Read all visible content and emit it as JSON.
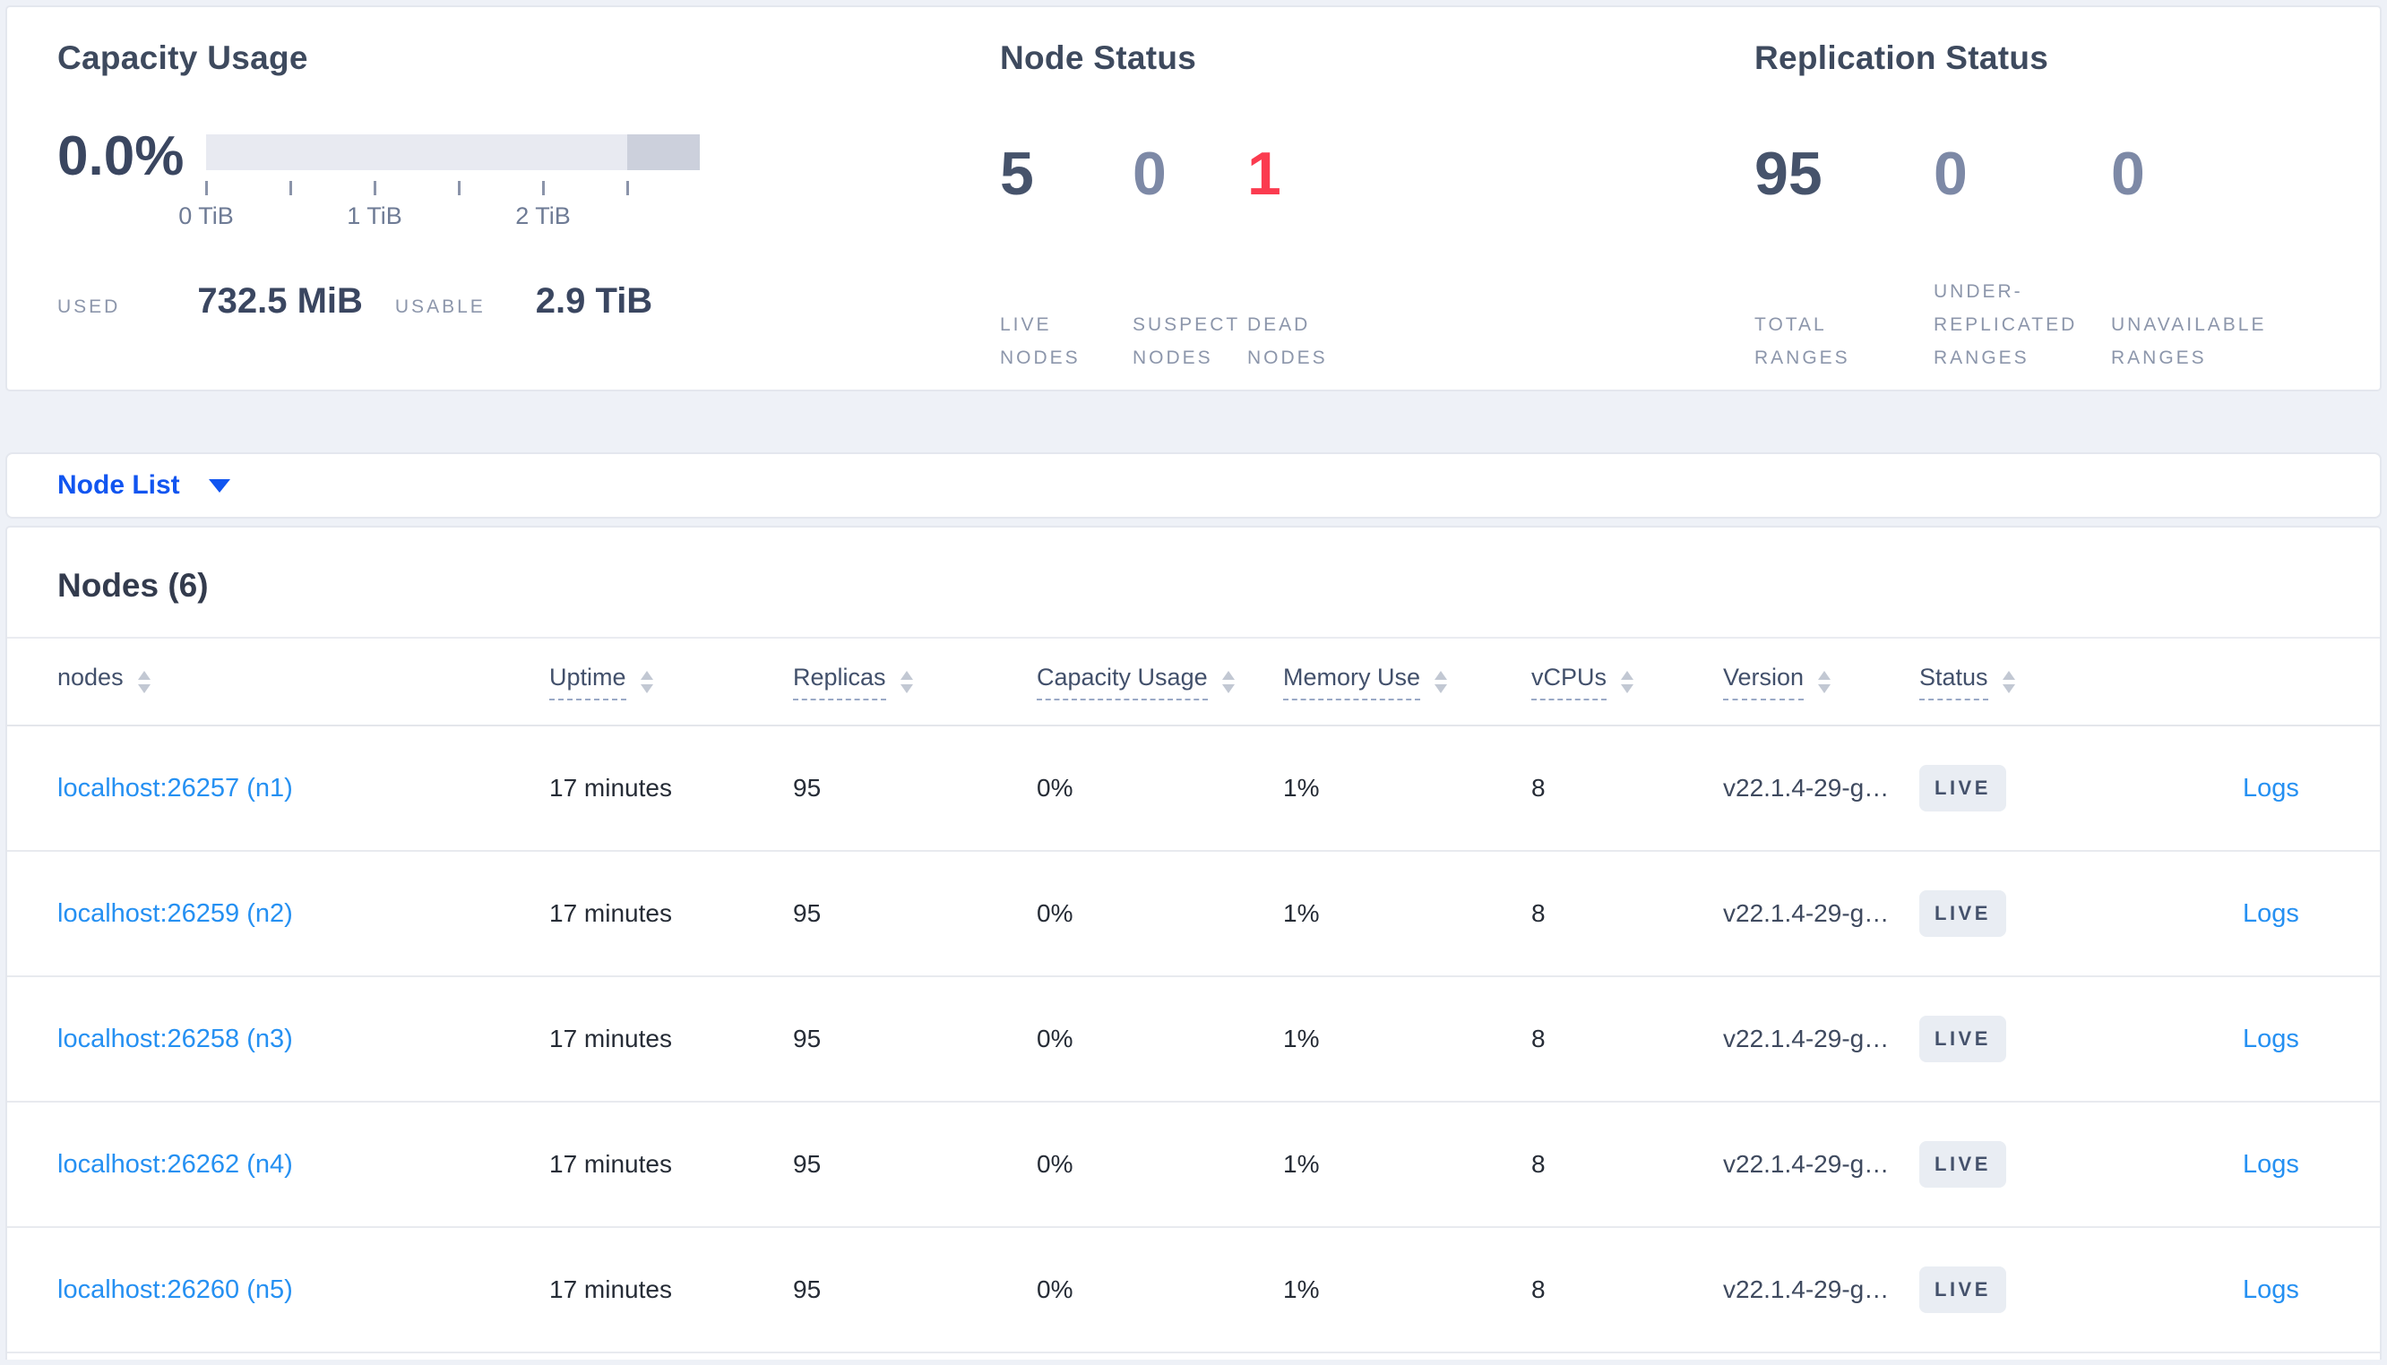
{
  "summary": {
    "capacity": {
      "title": "Capacity Usage",
      "percent": "0.0%",
      "used_label": "USED",
      "used_value": "732.5 MiB",
      "usable_label": "USABLE",
      "usable_value": "2.9 TiB",
      "bar": {
        "track_color": "#e8eaf1",
        "segment_color": "#ccd0dc",
        "segment_start_pct": 85.3,
        "tick_positions_pct": [
          0,
          17.06,
          34.12,
          51.18,
          68.24,
          85.3
        ],
        "tick_labels": [
          {
            "text": "0 TiB",
            "pct": 0
          },
          {
            "text": "1 TiB",
            "pct": 34.12
          },
          {
            "text": "2 TiB",
            "pct": 68.24
          }
        ]
      }
    },
    "node_status": {
      "title": "Node Status",
      "metrics": [
        {
          "value": "5",
          "label": "LIVE\nNODES",
          "color": "#46536b"
        },
        {
          "value": "0",
          "label": "SUSPECT\nNODES",
          "color": "#7d89a6"
        },
        {
          "value": "1",
          "label": "DEAD\nNODES",
          "color": "#fb3b4f"
        }
      ]
    },
    "replication": {
      "title": "Replication Status",
      "metrics": [
        {
          "value": "95",
          "label": "TOTAL\nRANGES",
          "color": "#46536b"
        },
        {
          "value": "0",
          "label": "UNDER-\nREPLICATED\nRANGES",
          "color": "#7d89a6"
        },
        {
          "value": "0",
          "label": "UNAVAILABLE\nRANGES",
          "color": "#7d89a6"
        }
      ]
    }
  },
  "view_selector": {
    "label": "Node List"
  },
  "table": {
    "title": "Nodes (6)",
    "columns": [
      {
        "label": "nodes",
        "dashed": false
      },
      {
        "label": "Uptime",
        "dashed": true
      },
      {
        "label": "Replicas",
        "dashed": true
      },
      {
        "label": "Capacity Usage",
        "dashed": true
      },
      {
        "label": "Memory Use",
        "dashed": true
      },
      {
        "label": "vCPUs",
        "dashed": true
      },
      {
        "label": "Version",
        "dashed": true
      },
      {
        "label": "Status",
        "dashed": true
      }
    ],
    "rows": [
      {
        "node": "localhost:26257 (n1)",
        "uptime": "17 minutes",
        "replicas": "95",
        "capacity": "0%",
        "memory": "1%",
        "vcpus": "8",
        "version": "v22.1.4-29-g…",
        "status": "LIVE",
        "logs": "Logs"
      },
      {
        "node": "localhost:26259 (n2)",
        "uptime": "17 minutes",
        "replicas": "95",
        "capacity": "0%",
        "memory": "1%",
        "vcpus": "8",
        "version": "v22.1.4-29-g…",
        "status": "LIVE",
        "logs": "Logs"
      },
      {
        "node": "localhost:26258 (n3)",
        "uptime": "17 minutes",
        "replicas": "95",
        "capacity": "0%",
        "memory": "1%",
        "vcpus": "8",
        "version": "v22.1.4-29-g…",
        "status": "LIVE",
        "logs": "Logs"
      },
      {
        "node": "localhost:26262 (n4)",
        "uptime": "17 minutes",
        "replicas": "95",
        "capacity": "0%",
        "memory": "1%",
        "vcpus": "8",
        "version": "v22.1.4-29-g…",
        "status": "LIVE",
        "logs": "Logs"
      },
      {
        "node": "localhost:26260 (n5)",
        "uptime": "17 minutes",
        "replicas": "95",
        "capacity": "0%",
        "memory": "1%",
        "vcpus": "8",
        "version": "v22.1.4-29-g…",
        "status": "LIVE",
        "logs": "Logs"
      }
    ]
  }
}
